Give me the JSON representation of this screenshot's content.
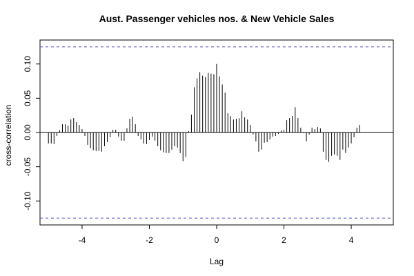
{
  "chart_data": {
    "type": "bar",
    "title": "Aust. Passenger vehicles nos. & New Vehicle Sales",
    "xlabel": "Lag",
    "ylabel": "cross-correlation",
    "xlim": [
      -5.25,
      5.25
    ],
    "ylim": [
      -0.135,
      0.135
    ],
    "x_ticks": [
      -4,
      -2,
      0,
      2,
      4
    ],
    "y_ticks": [
      -0.1,
      -0.05,
      0.0,
      0.05,
      0.1
    ],
    "x_tick_labels": [
      "-4",
      "-2",
      "0",
      "2",
      "4"
    ],
    "y_tick_labels": [
      "-0.10",
      "-0.05",
      "0.00",
      "0.05",
      "0.10"
    ],
    "confidence_bound": 0.125,
    "bar_color": "#000000",
    "bound_color": "#5555cc",
    "grid": false,
    "lag_start": -5,
    "lag_step": 0.0833333,
    "values": [
      -0.016,
      -0.016,
      -0.017,
      -0.005,
      0.003,
      0.012,
      0.012,
      0.01,
      0.019,
      0.021,
      0.015,
      0.011,
      0.005,
      -0.005,
      -0.018,
      -0.023,
      -0.026,
      -0.027,
      -0.027,
      -0.028,
      -0.02,
      -0.014,
      -0.007,
      0.004,
      0.004,
      -0.006,
      -0.012,
      -0.012,
      0.006,
      0.02,
      0.023,
      0.012,
      -0.005,
      -0.01,
      -0.016,
      -0.017,
      -0.011,
      -0.006,
      -0.012,
      -0.02,
      -0.026,
      -0.029,
      -0.03,
      -0.03,
      -0.025,
      -0.02,
      -0.022,
      -0.03,
      -0.042,
      -0.036,
      0.002,
      0.026,
      0.066,
      0.079,
      0.088,
      0.083,
      0.081,
      0.087,
      0.086,
      0.085,
      0.1,
      0.082,
      0.07,
      0.058,
      0.028,
      0.024,
      0.019,
      0.02,
      0.021,
      0.031,
      0.022,
      0.019,
      0.011,
      -0.003,
      -0.013,
      -0.028,
      -0.025,
      -0.015,
      -0.014,
      -0.01,
      -0.006,
      -0.005,
      -0.002,
      0.003,
      0.004,
      0.018,
      0.021,
      0.024,
      0.037,
      0.021,
      0.007,
      -0.001,
      -0.013,
      -0.003,
      0.007,
      0.005,
      0.008,
      0.006,
      -0.028,
      -0.04,
      -0.043,
      -0.034,
      -0.032,
      -0.034,
      -0.04,
      -0.025,
      -0.03,
      -0.022,
      -0.016,
      -0.007,
      0.007,
      0.011
    ]
  }
}
